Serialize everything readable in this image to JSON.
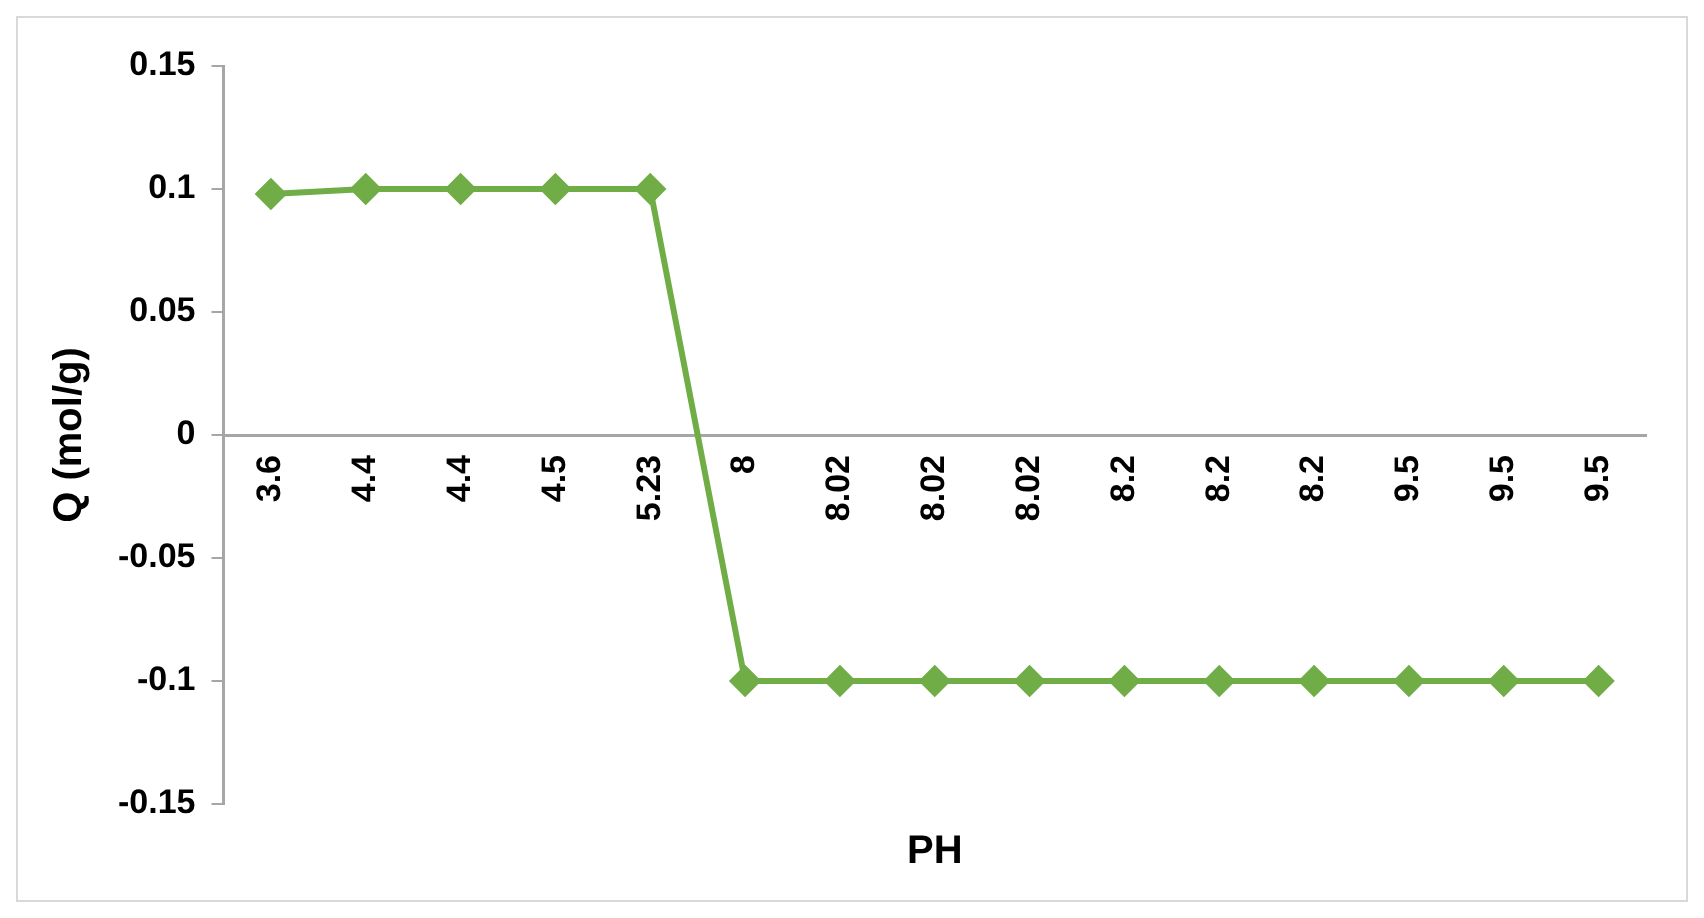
{
  "chart_data": {
    "type": "line",
    "xlabel": "PH",
    "ylabel": "Q (mol/g)",
    "categories": [
      "3.6",
      "4.4",
      "4.4",
      "4.5",
      "5.23",
      "8",
      "8.02",
      "8.02",
      "8.02",
      "8.2",
      "8.2",
      "8.2",
      "9.5",
      "9.5",
      "9.5"
    ],
    "series": [
      {
        "color": "#70ad47",
        "values": [
          0.098,
          0.1,
          0.1,
          0.1,
          0.1,
          -0.1,
          -0.1,
          -0.1,
          -0.1,
          -0.1,
          -0.1,
          -0.1,
          -0.1,
          -0.1,
          -0.1
        ]
      }
    ],
    "ylim": [
      -0.15,
      0.15
    ],
    "yticks": [
      -0.15,
      -0.1,
      -0.05,
      0,
      0.05,
      0.1,
      0.15
    ],
    "grid": false,
    "legend": false,
    "marker": "diamond",
    "line_style": "solid"
  }
}
